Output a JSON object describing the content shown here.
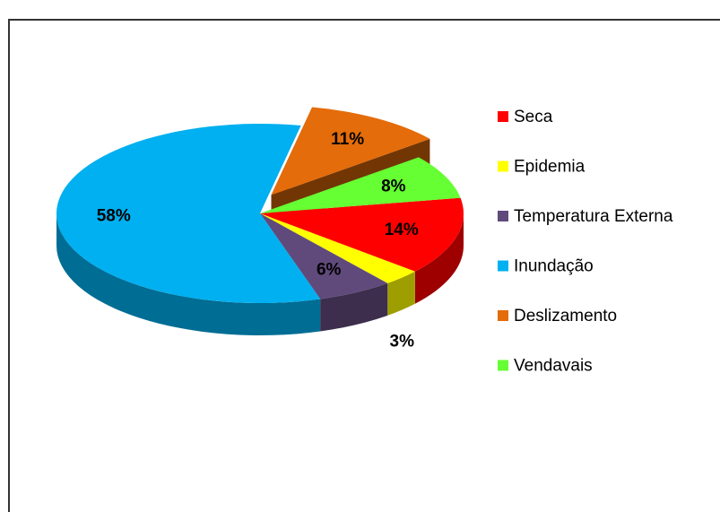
{
  "chart_data": {
    "type": "pie",
    "categories": [
      "Seca",
      "Epidemia",
      "Temperatura Externa",
      "Inundação",
      "Deslizamento",
      "Vendavais"
    ],
    "values": [
      14,
      3,
      6,
      58,
      11,
      8
    ],
    "value_labels": [
      "14%",
      "3%",
      "6%",
      "58%",
      "11%",
      "8%"
    ],
    "colors": [
      "#ff0000",
      "#ffff00",
      "#604a7b",
      "#00b0f0",
      "#e46c0a",
      "#66ff33"
    ],
    "exploded": [
      "Deslizamento"
    ],
    "legend": "right"
  }
}
